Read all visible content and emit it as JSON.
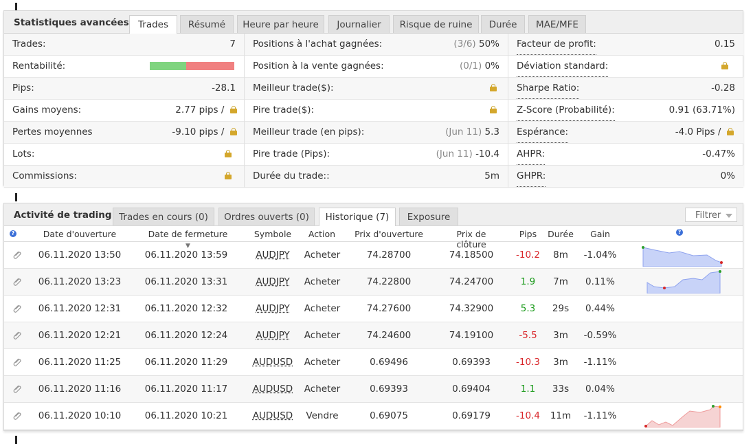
{
  "stats_panel": {
    "title": "Statistiques avancées",
    "tabs": [
      "Trades",
      "Résumé",
      "Heure par heure",
      "Journalier",
      "Risque de ruine",
      "Durée",
      "MAE/MFE"
    ],
    "active_tab": "Trades",
    "col1": [
      {
        "label": "Trades:",
        "value": "7"
      },
      {
        "label": "Rentabilité:",
        "value": "",
        "profitability_fraction": 0.43
      },
      {
        "label": "Pips:",
        "value": "-28.1"
      },
      {
        "label": "Gains moyens:",
        "value": "2.77 pips /",
        "locked": true
      },
      {
        "label": "Pertes moyennes",
        "value": "-9.10 pips /",
        "locked": true
      },
      {
        "label": "Lots:",
        "value": "",
        "locked": true
      },
      {
        "label": "Commissions:",
        "value": "",
        "locked": true
      }
    ],
    "col2": [
      {
        "label": "Positions à l'achat gagnées:",
        "note": "(3/6)",
        "value": "50%"
      },
      {
        "label": "Position à la vente gagnées:",
        "note": "(0/1)",
        "value": "0%"
      },
      {
        "label": "Meilleur trade($):",
        "note": "",
        "value": "",
        "locked": true
      },
      {
        "label": "Pire trade($):",
        "note": "",
        "value": "",
        "locked": true
      },
      {
        "label": "Meilleur trade (en pips):",
        "note": "(Jun 11)",
        "value": "5.3"
      },
      {
        "label": "Pire trade (Pips):",
        "note": "(Jun 11)",
        "value": "-10.4"
      },
      {
        "label": "Durée du trade::",
        "note": "",
        "value": "5m"
      }
    ],
    "col3": [
      {
        "label": "Facteur de profit:",
        "value": "0.15"
      },
      {
        "label": "Déviation standard:",
        "value": "",
        "locked": true
      },
      {
        "label": "Sharpe Ratio:",
        "value": "-0.28"
      },
      {
        "label": "Z-Score (Probabilité):",
        "value": "0.91 (63.71%)"
      },
      {
        "label": "Espérance:",
        "value": "-4.0 Pips /",
        "locked": true
      },
      {
        "label": "AHPR:",
        "value": "-0.47%"
      },
      {
        "label": "GHPR:",
        "value": "0%"
      }
    ]
  },
  "activity_panel": {
    "title": "Activité de trading",
    "tabs": [
      "Trades en cours (0)",
      "Ordres ouverts (0)",
      "Historique (7)",
      "Exposure"
    ],
    "active_tab": "Historique (7)",
    "filter_label": "Filtrer",
    "columns": [
      "Date d'ouverture",
      "Date de fermeture",
      "Symbole",
      "Action",
      "Prix d'ouverture",
      "Prix de clôture",
      "Pips",
      "Durée",
      "Gain"
    ],
    "rows": [
      {
        "open": "06.11.2020 13:50",
        "close": "06.11.2020 13:59",
        "symbol": "AUDJPY",
        "action": "Acheter",
        "open_price": "74.28700",
        "close_price": "74.18500",
        "pips": "-10.2",
        "duration": "8m",
        "gain": "-1.04%",
        "sign": "neg"
      },
      {
        "open": "06.11.2020 13:23",
        "close": "06.11.2020 13:31",
        "symbol": "AUDJPY",
        "action": "Acheter",
        "open_price": "74.22800",
        "close_price": "74.24700",
        "pips": "1.9",
        "duration": "7m",
        "gain": "0.11%",
        "sign": "pos"
      },
      {
        "open": "06.11.2020 12:31",
        "close": "06.11.2020 12:32",
        "symbol": "AUDJPY",
        "action": "Acheter",
        "open_price": "74.27600",
        "close_price": "74.32900",
        "pips": "5.3",
        "duration": "29s",
        "gain": "0.44%",
        "sign": "pos"
      },
      {
        "open": "06.11.2020 12:21",
        "close": "06.11.2020 12:24",
        "symbol": "AUDJPY",
        "action": "Acheter",
        "open_price": "74.24600",
        "close_price": "74.19100",
        "pips": "-5.5",
        "duration": "3m",
        "gain": "-0.59%",
        "sign": "neg"
      },
      {
        "open": "06.11.2020 11:25",
        "close": "06.11.2020 11:29",
        "symbol": "AUDUSD",
        "action": "Acheter",
        "open_price": "0.69496",
        "close_price": "0.69393",
        "pips": "-10.3",
        "duration": "3m",
        "gain": "-1.11%",
        "sign": "neg"
      },
      {
        "open": "06.11.2020 11:16",
        "close": "06.11.2020 11:17",
        "symbol": "AUDUSD",
        "action": "Acheter",
        "open_price": "0.69393",
        "close_price": "0.69404",
        "pips": "1.1",
        "duration": "33s",
        "gain": "0.04%",
        "sign": "pos"
      },
      {
        "open": "06.11.2020 10:10",
        "close": "06.11.2020 10:21",
        "symbol": "AUDUSD",
        "action": "Vendre",
        "open_price": "0.69075",
        "close_price": "0.69179",
        "pips": "-10.4",
        "duration": "11m",
        "gain": "-1.11%",
        "sign": "neg"
      }
    ]
  },
  "colors": {
    "profit_green": "#7fd47f",
    "loss_red": "#f08080",
    "neg_text": "#d9262a",
    "pos_text": "#1a9a1a",
    "spark_blue": "#aabbf5",
    "spark_red": "#f3c0c0"
  }
}
